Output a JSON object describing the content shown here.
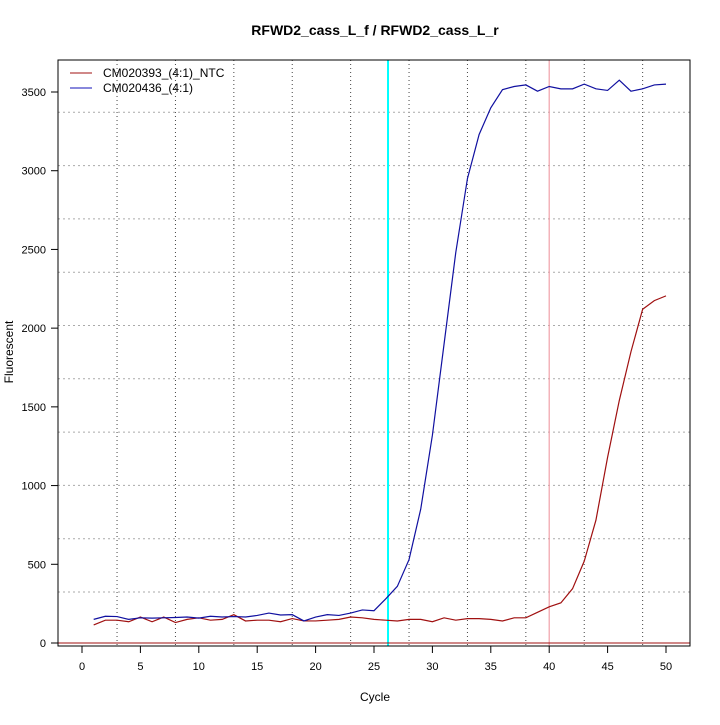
{
  "chart_data": {
    "type": "line",
    "title": "RFWD2_cass_L_f / RFWD2_cass_L_r",
    "xlabel": "Cycle",
    "ylabel": "Fluorescent",
    "xlim": [
      0,
      50
    ],
    "ylim": [
      0,
      3500
    ],
    "xticks": [
      0,
      5,
      10,
      15,
      20,
      25,
      30,
      35,
      40,
      45,
      50
    ],
    "yticks": [
      0,
      500,
      1000,
      1500,
      2000,
      2500,
      3000,
      3500
    ],
    "grid": true,
    "legend_position": "top-left",
    "threshold_lines": [
      {
        "name": "cyan-marker",
        "x": 26.2,
        "color": "#00FFFF"
      },
      {
        "name": "pink-marker",
        "x": 40,
        "color": "#F0A0A8"
      }
    ],
    "x": [
      1,
      2,
      3,
      4,
      5,
      6,
      7,
      8,
      9,
      10,
      11,
      12,
      13,
      14,
      15,
      16,
      17,
      18,
      19,
      20,
      21,
      22,
      23,
      24,
      25,
      26,
      27,
      28,
      29,
      30,
      31,
      32,
      33,
      34,
      35,
      36,
      37,
      38,
      39,
      40,
      41,
      42,
      43,
      44,
      45,
      46,
      47,
      48,
      49,
      50
    ],
    "series": [
      {
        "name": "CM020393_(4:1)_NTC",
        "color": "#A01010",
        "values": [
          115,
          145,
          145,
          135,
          165,
          135,
          165,
          130,
          150,
          160,
          145,
          150,
          180,
          140,
          145,
          145,
          135,
          155,
          140,
          140,
          145,
          150,
          165,
          160,
          150,
          145,
          140,
          150,
          150,
          135,
          160,
          145,
          155,
          155,
          150,
          140,
          160,
          160,
          195,
          230,
          255,
          345,
          520,
          780,
          1180,
          1540,
          1850,
          2120,
          2175,
          2205
        ]
      },
      {
        "name": "CM020436_(4:1)",
        "color": "#1010A0",
        "values": [
          150,
          170,
          168,
          150,
          160,
          158,
          160,
          162,
          165,
          158,
          170,
          165,
          168,
          165,
          175,
          190,
          178,
          180,
          140,
          165,
          180,
          175,
          190,
          210,
          205,
          280,
          360,
          530,
          850,
          1320,
          1900,
          2480,
          2950,
          3230,
          3400,
          3515,
          3535,
          3545,
          3505,
          3535,
          3520,
          3520,
          3550,
          3520,
          3510,
          3575,
          3505,
          3520,
          3545,
          3550
        ]
      }
    ]
  }
}
